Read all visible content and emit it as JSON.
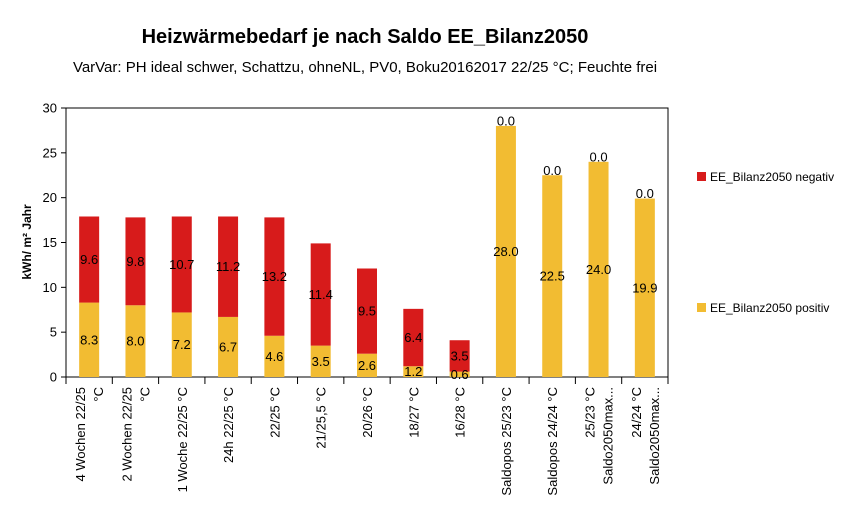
{
  "chart_data": {
    "type": "bar",
    "stacked": true,
    "title": "Heizwärmebedarf je nach Saldo EE_Bilanz2050",
    "subtitle": "VarVar: PH ideal schwer, Schattzu, ohneNL, PV0, Boku20162017 22/25 °C; Feuchte frei",
    "ylabel": "kWh/ m² Jahr",
    "xlabel": "",
    "ylim": [
      0,
      30
    ],
    "yticks": [
      0,
      5,
      10,
      15,
      20,
      25,
      30
    ],
    "grid": false,
    "legend_position": "right",
    "categories": [
      [
        "4 Wochen  22/25",
        "°C"
      ],
      [
        "2 Wochen  22/25",
        "°C"
      ],
      [
        "1 Woche  22/25 °C"
      ],
      [
        "24h 22/25 °C"
      ],
      [
        "22/25 °C"
      ],
      [
        "21/25,5 °C"
      ],
      [
        "20/26 °C"
      ],
      [
        "18/27 °C"
      ],
      [
        "16/28 °C"
      ],
      [
        "Saldopos 25/23 °C"
      ],
      [
        "Saldopos 24/24 °C"
      ],
      [
        "25/23 °C",
        "Saldo2050max..."
      ],
      [
        "24/24 °C",
        "Saldo2050max..."
      ]
    ],
    "series": [
      {
        "name": "EE_Bilanz2050 positiv",
        "color": "#F2BC32",
        "values": [
          8.3,
          8.0,
          7.2,
          6.7,
          4.6,
          3.5,
          2.6,
          1.2,
          0.6,
          28.0,
          22.5,
          24.0,
          19.9
        ],
        "labels": [
          "8.3",
          "8.0",
          "7.2",
          "6.7",
          "4.6",
          "3.5",
          "2.6",
          "1.2",
          "0.6",
          "28.0",
          "22.5",
          "24.0",
          "19.9"
        ]
      },
      {
        "name": "EE_Bilanz2050 negativ",
        "color": "#D71B1B",
        "values": [
          9.6,
          9.8,
          10.7,
          11.2,
          13.2,
          11.4,
          9.5,
          6.4,
          3.5,
          0.0,
          0.0,
          0.0,
          0.0
        ],
        "labels": [
          "9.6",
          "9.8",
          "10.7",
          "11.2",
          "13.2",
          "11.4",
          "9.5",
          "6.4",
          "3.5",
          "0.0",
          "0.0",
          "0.0",
          "0.0"
        ]
      }
    ]
  }
}
